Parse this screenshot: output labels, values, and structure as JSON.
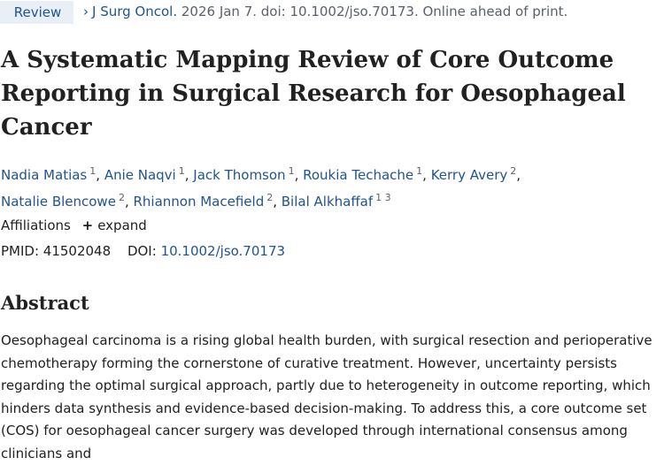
{
  "header": {
    "badge": "Review",
    "chevron": "›",
    "journal": "J Surg Oncol.",
    "citation_rest": "2026 Jan 7. doi: 10.1002/jso.70173. Online ahead of print."
  },
  "title": "A Systematic Mapping Review of Core Outcome Reporting in Surgical Research for Oesophageal Cancer",
  "authors": [
    {
      "name": "Nadia Matias",
      "aff": "1"
    },
    {
      "name": "Anie Naqvi",
      "aff": "1"
    },
    {
      "name": "Jack Thomson",
      "aff": "1"
    },
    {
      "name": "Roukia Techache",
      "aff": "1"
    },
    {
      "name": "Kerry Avery",
      "aff": "2"
    },
    {
      "name": "Natalie Blencowe",
      "aff": "2"
    },
    {
      "name": "Rhiannon Macefield",
      "aff": "2"
    },
    {
      "name": "Bilal Alkhaffaf",
      "aff": "1 3"
    }
  ],
  "affiliations": {
    "label": "Affiliations",
    "expand_icon": "plus-icon",
    "expand_symbol": "+",
    "expand_label": "expand"
  },
  "ids": {
    "pmid_label": "PMID:",
    "pmid": "41502048",
    "doi_label": "DOI:",
    "doi": "10.1002/jso.70173"
  },
  "abstract": {
    "heading": "Abstract",
    "text": "Oesophageal carcinoma is a rising global health burden, with surgical resection and perioperative chemotherapy forming the cornerstone of curative treatment. However, uncertainty persists regarding the optimal surgical approach, partly due to heterogeneity in outcome reporting, which hinders data synthesis and evidence-based decision-making. To address this, a core outcome set (COS) for oesophageal cancer surgery was developed through international consensus among clinicians and"
  },
  "colors": {
    "link": "#205493",
    "badge_bg": "#e8eff7",
    "text": "#212121",
    "muted": "#5b616b"
  }
}
